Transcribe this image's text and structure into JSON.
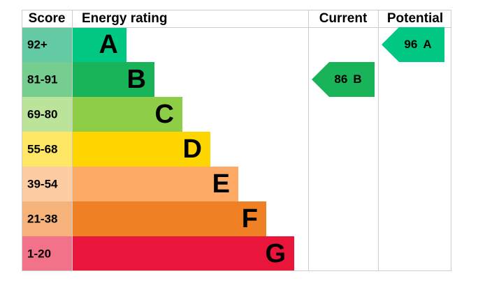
{
  "header": {
    "score": "Score",
    "rating": "Energy rating",
    "current": "Current",
    "potential": "Potential"
  },
  "bands": [
    {
      "score": "92+",
      "letter": "A",
      "color": "#00c781",
      "score_color": "#64caa3"
    },
    {
      "score": "81-91",
      "letter": "B",
      "color": "#19b459",
      "score_color": "#75cd8f"
    },
    {
      "score": "69-80",
      "letter": "C",
      "color": "#8dce46",
      "score_color": "#bce39a"
    },
    {
      "score": "55-68",
      "letter": "D",
      "color": "#ffd500",
      "score_color": "#ffe766"
    },
    {
      "score": "39-54",
      "letter": "E",
      "color": "#fcaa65",
      "score_color": "#fdcca3"
    },
    {
      "score": "21-38",
      "letter": "F",
      "color": "#ef8023",
      "score_color": "#f5b37b"
    },
    {
      "score": "1-20",
      "letter": "G",
      "color": "#e9153b",
      "score_color": "#f27289"
    }
  ],
  "current": {
    "score": 86,
    "letter": "B"
  },
  "potential": {
    "score": 96,
    "letter": "A"
  }
}
